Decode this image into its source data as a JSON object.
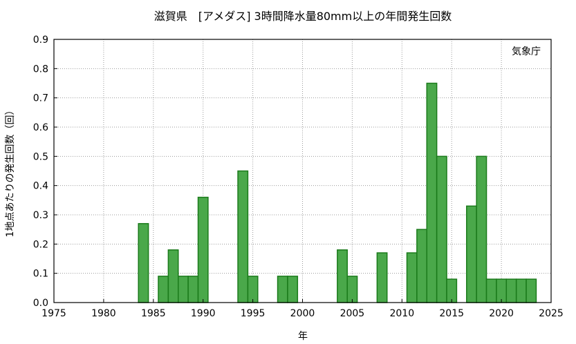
{
  "chart_data": {
    "type": "bar",
    "title": "滋賀県　[アメダス] 3時間降水量80mm以上の年間発生回数",
    "xlabel": "年",
    "ylabel": "1地点あたりの発生回数（回）",
    "note": "気象庁",
    "xlim": [
      1975,
      2025
    ],
    "ylim": [
      0,
      0.9
    ],
    "grid": true,
    "x_ticks": [
      "1975",
      "1980",
      "1985",
      "1990",
      "1995",
      "2000",
      "2005",
      "2010",
      "2015",
      "2020",
      "2025"
    ],
    "y_ticks": [
      "0.0",
      "0.1",
      "0.2",
      "0.3",
      "0.4",
      "0.5",
      "0.6",
      "0.7",
      "0.8",
      "0.9"
    ],
    "bar_color": "#4aa84a",
    "bar_edge_color": "#1a7a1a",
    "x": [
      1984,
      1986,
      1987,
      1988,
      1989,
      1990,
      1994,
      1995,
      1998,
      1999,
      2004,
      2005,
      2008,
      2011,
      2012,
      2013,
      2014,
      2015,
      2017,
      2018,
      2019,
      2020,
      2021,
      2022,
      2023
    ],
    "values": [
      0.27,
      0.09,
      0.18,
      0.09,
      0.09,
      0.36,
      0.45,
      0.09,
      0.09,
      0.09,
      0.18,
      0.09,
      0.17,
      0.17,
      0.25,
      0.75,
      0.5,
      0.08,
      0.33,
      0.5,
      0.08,
      0.08,
      0.08,
      0.08,
      0.08
    ]
  }
}
